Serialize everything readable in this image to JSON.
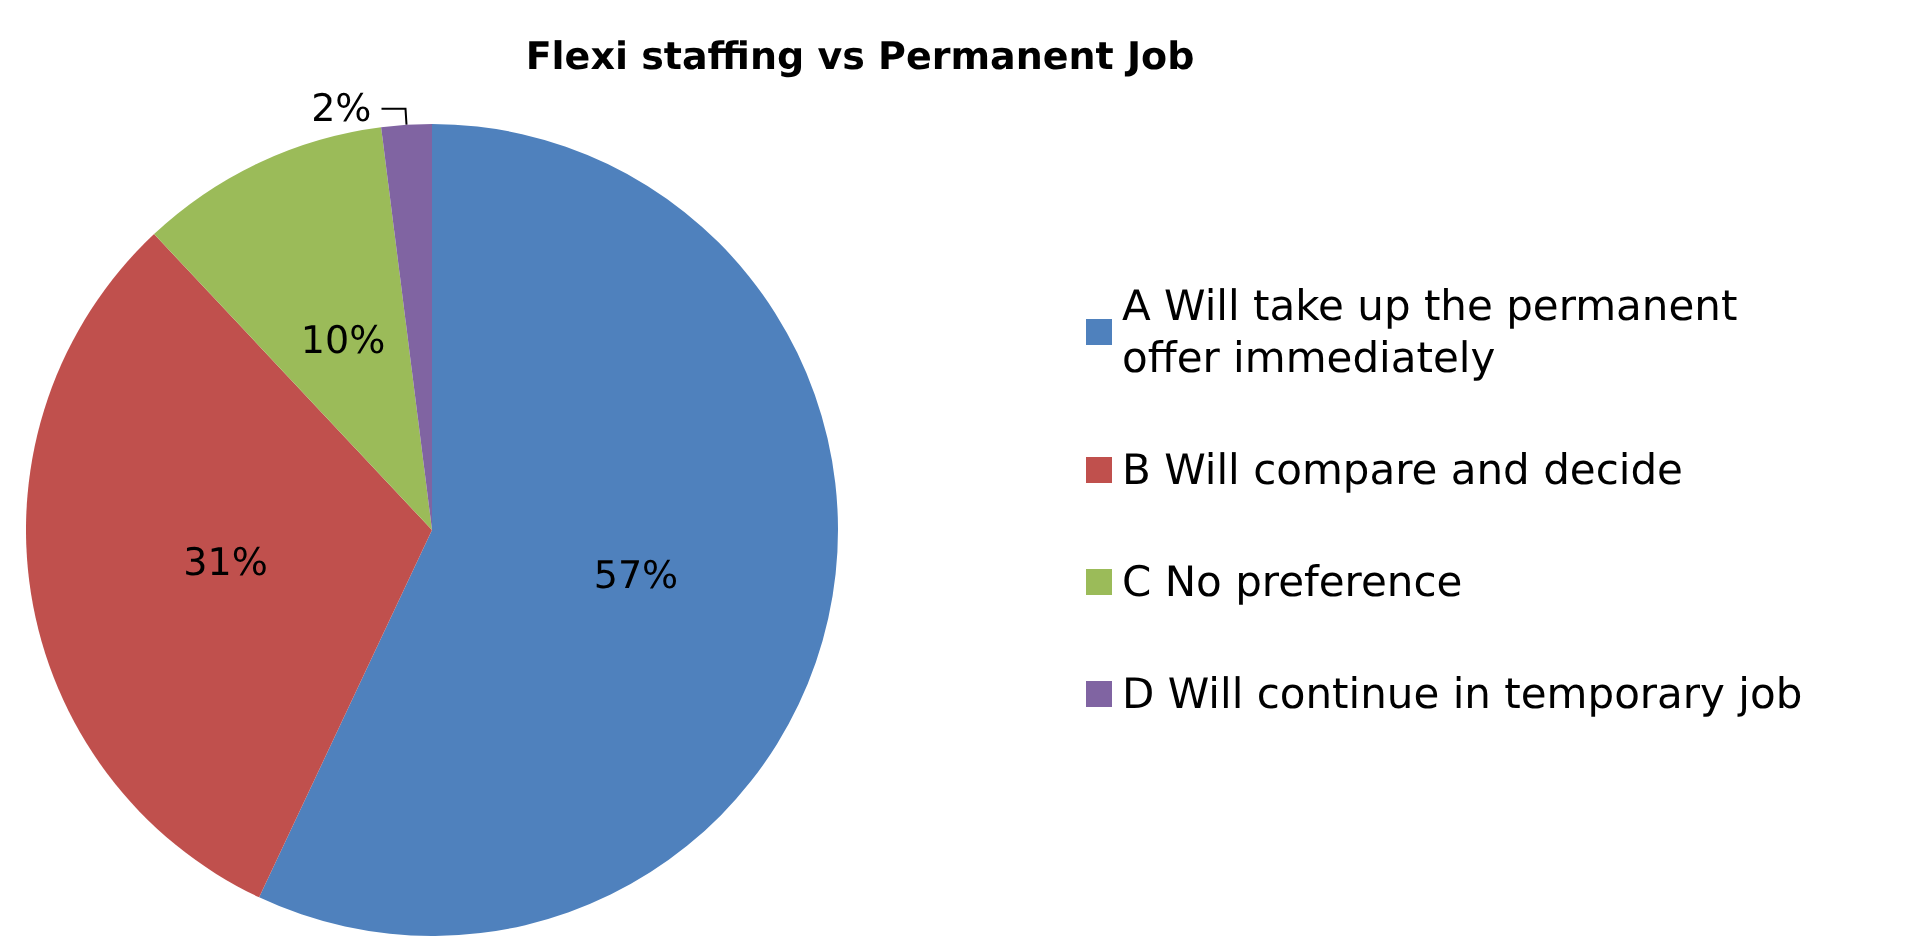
{
  "chart_data": {
    "type": "pie",
    "title": "Flexi staffing vs Permanent Job",
    "categories": [
      "A Will take up the permanent offer immediately",
      "B Will compare and decide",
      "C No preference",
      "D Will continue in temporary job"
    ],
    "values": [
      57,
      31,
      10,
      2
    ],
    "colors": [
      "#4f81bd",
      "#c0504d",
      "#9bbb59",
      "#8064a2"
    ],
    "value_labels": [
      "57%",
      "31%",
      "10%",
      "2%"
    ],
    "legend": "right"
  }
}
